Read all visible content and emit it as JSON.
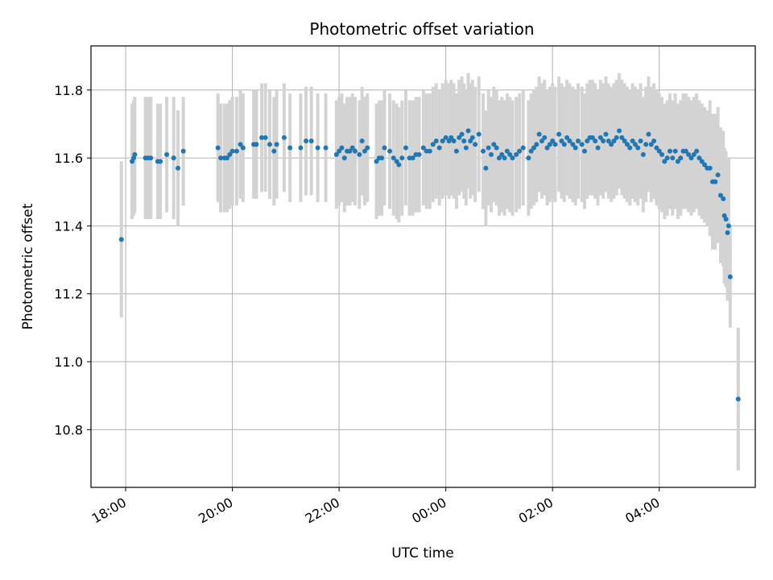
{
  "chart_data": {
    "type": "scatter",
    "title": "Photometric offset variation",
    "xlabel": "UTC time",
    "ylabel": "Photometric offset",
    "x_unit": "hours (UTC, relative to 00:00 of second night)",
    "x_ticks": [
      {
        "value": -6,
        "label": "18:00"
      },
      {
        "value": -4,
        "label": "20:00"
      },
      {
        "value": -2,
        "label": "22:00"
      },
      {
        "value": 0,
        "label": "00:00"
      },
      {
        "value": 2,
        "label": "02:00"
      },
      {
        "value": 4,
        "label": "04:00"
      }
    ],
    "y_ticks": [
      {
        "value": 10.8,
        "label": "10.8"
      },
      {
        "value": 11.0,
        "label": "11.0"
      },
      {
        "value": 11.2,
        "label": "11.2"
      },
      {
        "value": 11.4,
        "label": "11.4"
      },
      {
        "value": 11.6,
        "label": "11.6"
      },
      {
        "value": 11.8,
        "label": "11.8"
      }
    ],
    "xlim": [
      -6.65,
      5.8
    ],
    "ylim": [
      10.63,
      11.93
    ],
    "grid": true,
    "colors": {
      "points": "#1f77b4",
      "errorbars": "#d3d3d3",
      "grid": "#b0b0b0"
    },
    "series": [
      {
        "points": [
          [
            -6.08,
            11.36,
            0.23
          ],
          [
            -5.88,
            11.59,
            0.17
          ],
          [
            -5.85,
            11.6,
            0.17
          ],
          [
            -5.83,
            11.61,
            0.17
          ],
          [
            -5.63,
            11.6,
            0.18
          ],
          [
            -5.58,
            11.6,
            0.18
          ],
          [
            -5.53,
            11.6,
            0.18
          ],
          [
            -5.4,
            11.59,
            0.17
          ],
          [
            -5.35,
            11.59,
            0.17
          ],
          [
            -5.23,
            11.61,
            0.17
          ],
          [
            -5.1,
            11.6,
            0.18
          ],
          [
            -5.02,
            11.57,
            0.17
          ],
          [
            -4.92,
            11.62,
            0.16
          ],
          [
            -4.27,
            11.63,
            0.16
          ],
          [
            -4.22,
            11.6,
            0.16
          ],
          [
            -4.15,
            11.6,
            0.16
          ],
          [
            -4.1,
            11.6,
            0.16
          ],
          [
            -4.05,
            11.61,
            0.16
          ],
          [
            -4.0,
            11.62,
            0.16
          ],
          [
            -3.92,
            11.62,
            0.16
          ],
          [
            -3.85,
            11.64,
            0.16
          ],
          [
            -3.8,
            11.63,
            0.16
          ],
          [
            -3.6,
            11.64,
            0.16
          ],
          [
            -3.55,
            11.64,
            0.16
          ],
          [
            -3.45,
            11.66,
            0.16
          ],
          [
            -3.38,
            11.66,
            0.16
          ],
          [
            -3.3,
            11.64,
            0.16
          ],
          [
            -3.22,
            11.62,
            0.16
          ],
          [
            -3.17,
            11.64,
            0.16
          ],
          [
            -3.03,
            11.66,
            0.16
          ],
          [
            -2.92,
            11.63,
            0.16
          ],
          [
            -2.72,
            11.63,
            0.16
          ],
          [
            -2.62,
            11.65,
            0.16
          ],
          [
            -2.52,
            11.65,
            0.16
          ],
          [
            -2.4,
            11.63,
            0.16
          ],
          [
            -2.25,
            11.63,
            0.16
          ],
          [
            -2.05,
            11.61,
            0.16
          ],
          [
            -2.0,
            11.62,
            0.16
          ],
          [
            -1.95,
            11.63,
            0.16
          ],
          [
            -1.9,
            11.6,
            0.16
          ],
          [
            -1.85,
            11.62,
            0.16
          ],
          [
            -1.8,
            11.62,
            0.16
          ],
          [
            -1.75,
            11.63,
            0.16
          ],
          [
            -1.7,
            11.62,
            0.16
          ],
          [
            -1.62,
            11.61,
            0.16
          ],
          [
            -1.57,
            11.65,
            0.16
          ],
          [
            -1.52,
            11.62,
            0.16
          ],
          [
            -1.47,
            11.63,
            0.16
          ],
          [
            -1.3,
            11.59,
            0.17
          ],
          [
            -1.25,
            11.6,
            0.17
          ],
          [
            -1.2,
            11.6,
            0.17
          ],
          [
            -1.15,
            11.63,
            0.17
          ],
          [
            -1.05,
            11.62,
            0.17
          ],
          [
            -0.98,
            11.6,
            0.17
          ],
          [
            -0.92,
            11.59,
            0.17
          ],
          [
            -0.88,
            11.58,
            0.17
          ],
          [
            -0.82,
            11.6,
            0.17
          ],
          [
            -0.75,
            11.63,
            0.17
          ],
          [
            -0.68,
            11.6,
            0.17
          ],
          [
            -0.62,
            11.6,
            0.17
          ],
          [
            -0.56,
            11.61,
            0.17
          ],
          [
            -0.5,
            11.61,
            0.17
          ],
          [
            -0.42,
            11.63,
            0.17
          ],
          [
            -0.36,
            11.62,
            0.17
          ],
          [
            -0.3,
            11.62,
            0.17
          ],
          [
            -0.24,
            11.64,
            0.17
          ],
          [
            -0.18,
            11.65,
            0.17
          ],
          [
            -0.12,
            11.63,
            0.17
          ],
          [
            -0.06,
            11.65,
            0.17
          ],
          [
            0.0,
            11.66,
            0.17
          ],
          [
            0.06,
            11.65,
            0.17
          ],
          [
            0.1,
            11.66,
            0.17
          ],
          [
            0.15,
            11.65,
            0.17
          ],
          [
            0.2,
            11.62,
            0.17
          ],
          [
            0.25,
            11.66,
            0.17
          ],
          [
            0.3,
            11.67,
            0.17
          ],
          [
            0.34,
            11.65,
            0.17
          ],
          [
            0.38,
            11.63,
            0.17
          ],
          [
            0.42,
            11.68,
            0.17
          ],
          [
            0.46,
            11.65,
            0.17
          ],
          [
            0.5,
            11.66,
            0.17
          ],
          [
            0.55,
            11.64,
            0.17
          ],
          [
            0.62,
            11.67,
            0.17
          ],
          [
            0.7,
            11.62,
            0.17
          ],
          [
            0.75,
            11.57,
            0.17
          ],
          [
            0.8,
            11.63,
            0.17
          ],
          [
            0.85,
            11.61,
            0.17
          ],
          [
            0.9,
            11.64,
            0.17
          ],
          [
            0.95,
            11.63,
            0.17
          ],
          [
            1.0,
            11.6,
            0.17
          ],
          [
            1.05,
            11.61,
            0.17
          ],
          [
            1.1,
            11.6,
            0.17
          ],
          [
            1.15,
            11.62,
            0.17
          ],
          [
            1.2,
            11.61,
            0.17
          ],
          [
            1.25,
            11.6,
            0.17
          ],
          [
            1.32,
            11.61,
            0.17
          ],
          [
            1.38,
            11.62,
            0.17
          ],
          [
            1.45,
            11.63,
            0.17
          ],
          [
            1.55,
            11.6,
            0.17
          ],
          [
            1.6,
            11.62,
            0.17
          ],
          [
            1.65,
            11.63,
            0.17
          ],
          [
            1.7,
            11.64,
            0.17
          ],
          [
            1.75,
            11.67,
            0.17
          ],
          [
            1.8,
            11.65,
            0.17
          ],
          [
            1.85,
            11.66,
            0.17
          ],
          [
            1.9,
            11.63,
            0.17
          ],
          [
            1.95,
            11.64,
            0.17
          ],
          [
            2.0,
            11.65,
            0.17
          ],
          [
            2.05,
            11.64,
            0.17
          ],
          [
            2.12,
            11.67,
            0.17
          ],
          [
            2.17,
            11.65,
            0.17
          ],
          [
            2.22,
            11.64,
            0.17
          ],
          [
            2.27,
            11.66,
            0.17
          ],
          [
            2.32,
            11.65,
            0.17
          ],
          [
            2.38,
            11.64,
            0.17
          ],
          [
            2.43,
            11.63,
            0.17
          ],
          [
            2.48,
            11.65,
            0.17
          ],
          [
            2.55,
            11.64,
            0.17
          ],
          [
            2.6,
            11.62,
            0.17
          ],
          [
            2.65,
            11.65,
            0.17
          ],
          [
            2.7,
            11.66,
            0.17
          ],
          [
            2.75,
            11.66,
            0.17
          ],
          [
            2.8,
            11.65,
            0.17
          ],
          [
            2.85,
            11.63,
            0.17
          ],
          [
            2.9,
            11.66,
            0.17
          ],
          [
            2.95,
            11.65,
            0.17
          ],
          [
            3.0,
            11.67,
            0.17
          ],
          [
            3.05,
            11.65,
            0.17
          ],
          [
            3.1,
            11.64,
            0.17
          ],
          [
            3.15,
            11.65,
            0.17
          ],
          [
            3.2,
            11.66,
            0.17
          ],
          [
            3.25,
            11.68,
            0.17
          ],
          [
            3.3,
            11.66,
            0.17
          ],
          [
            3.35,
            11.65,
            0.17
          ],
          [
            3.4,
            11.64,
            0.17
          ],
          [
            3.45,
            11.63,
            0.17
          ],
          [
            3.5,
            11.65,
            0.17
          ],
          [
            3.55,
            11.64,
            0.17
          ],
          [
            3.6,
            11.63,
            0.17
          ],
          [
            3.65,
            11.65,
            0.17
          ],
          [
            3.7,
            11.61,
            0.17
          ],
          [
            3.75,
            11.64,
            0.17
          ],
          [
            3.8,
            11.67,
            0.17
          ],
          [
            3.85,
            11.64,
            0.17
          ],
          [
            3.9,
            11.65,
            0.17
          ],
          [
            3.95,
            11.63,
            0.17
          ],
          [
            4.0,
            11.62,
            0.17
          ],
          [
            4.05,
            11.61,
            0.17
          ],
          [
            4.1,
            11.59,
            0.17
          ],
          [
            4.15,
            11.6,
            0.17
          ],
          [
            4.2,
            11.62,
            0.17
          ],
          [
            4.25,
            11.6,
            0.17
          ],
          [
            4.3,
            11.62,
            0.17
          ],
          [
            4.35,
            11.59,
            0.17
          ],
          [
            4.4,
            11.6,
            0.17
          ],
          [
            4.45,
            11.62,
            0.17
          ],
          [
            4.5,
            11.62,
            0.17
          ],
          [
            4.55,
            11.61,
            0.17
          ],
          [
            4.6,
            11.6,
            0.17
          ],
          [
            4.65,
            11.61,
            0.17
          ],
          [
            4.7,
            11.62,
            0.17
          ],
          [
            4.75,
            11.6,
            0.17
          ],
          [
            4.8,
            11.59,
            0.17
          ],
          [
            4.85,
            11.58,
            0.17
          ],
          [
            4.9,
            11.57,
            0.17
          ],
          [
            4.95,
            11.57,
            0.2
          ],
          [
            5.0,
            11.53,
            0.2
          ],
          [
            5.05,
            11.53,
            0.2
          ],
          [
            5.1,
            11.55,
            0.2
          ],
          [
            5.15,
            11.49,
            0.2
          ],
          [
            5.2,
            11.48,
            0.2
          ],
          [
            5.22,
            11.43,
            0.2
          ],
          [
            5.25,
            11.42,
            0.2
          ],
          [
            5.28,
            11.38,
            0.2
          ],
          [
            5.3,
            11.4,
            0.2
          ],
          [
            5.33,
            11.25,
            0.15
          ],
          [
            5.48,
            10.89,
            0.21
          ]
        ]
      }
    ]
  }
}
